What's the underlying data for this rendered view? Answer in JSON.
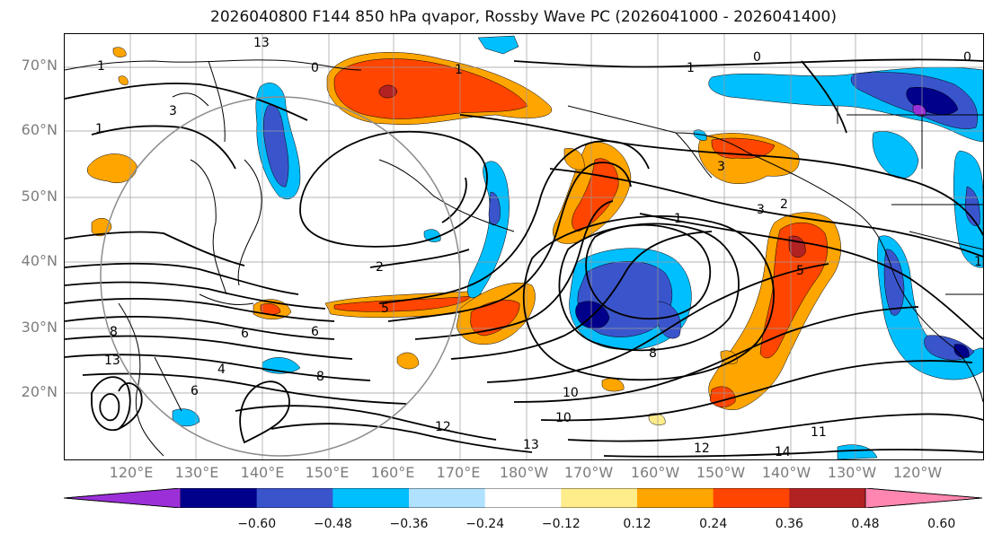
{
  "title": "2026040800 F144 850 hPa qvapor, Rossby Wave PC (2026041000 - 2026041400)",
  "lat_labels": [
    "70°N",
    "60°N",
    "50°N",
    "40°N",
    "30°N",
    "20°N"
  ],
  "lon_labels": [
    "120°E",
    "130°E",
    "140°E",
    "150°E",
    "160°E",
    "170°E",
    "180°W",
    "170°W",
    "160°W",
    "150°W",
    "140°W",
    "130°W",
    "120°W"
  ],
  "colorbar": {
    "ticks": [
      "−0.60",
      "−0.48",
      "−0.36",
      "−0.24",
      "−0.12",
      "0.12",
      "0.24",
      "0.36",
      "0.48",
      "0.60"
    ],
    "colors": [
      "#9b30d9",
      "#00008b",
      "#3a55cc",
      "#00bfff",
      "#b0e2ff",
      "#ffffff",
      "#ffec8b",
      "#ffa500",
      "#ff4500",
      "#b22222",
      "#ff86b0"
    ]
  },
  "contour_labels": [
    "13",
    "0",
    "1",
    "1",
    "3",
    "0",
    "0",
    "1",
    "1",
    "1",
    "2",
    "3",
    "5",
    "1",
    "3",
    "2",
    "5",
    "4",
    "6",
    "6",
    "8",
    "8",
    "10",
    "13",
    "6",
    "8",
    "12",
    "10",
    "13",
    "12",
    "14",
    "11"
  ]
}
